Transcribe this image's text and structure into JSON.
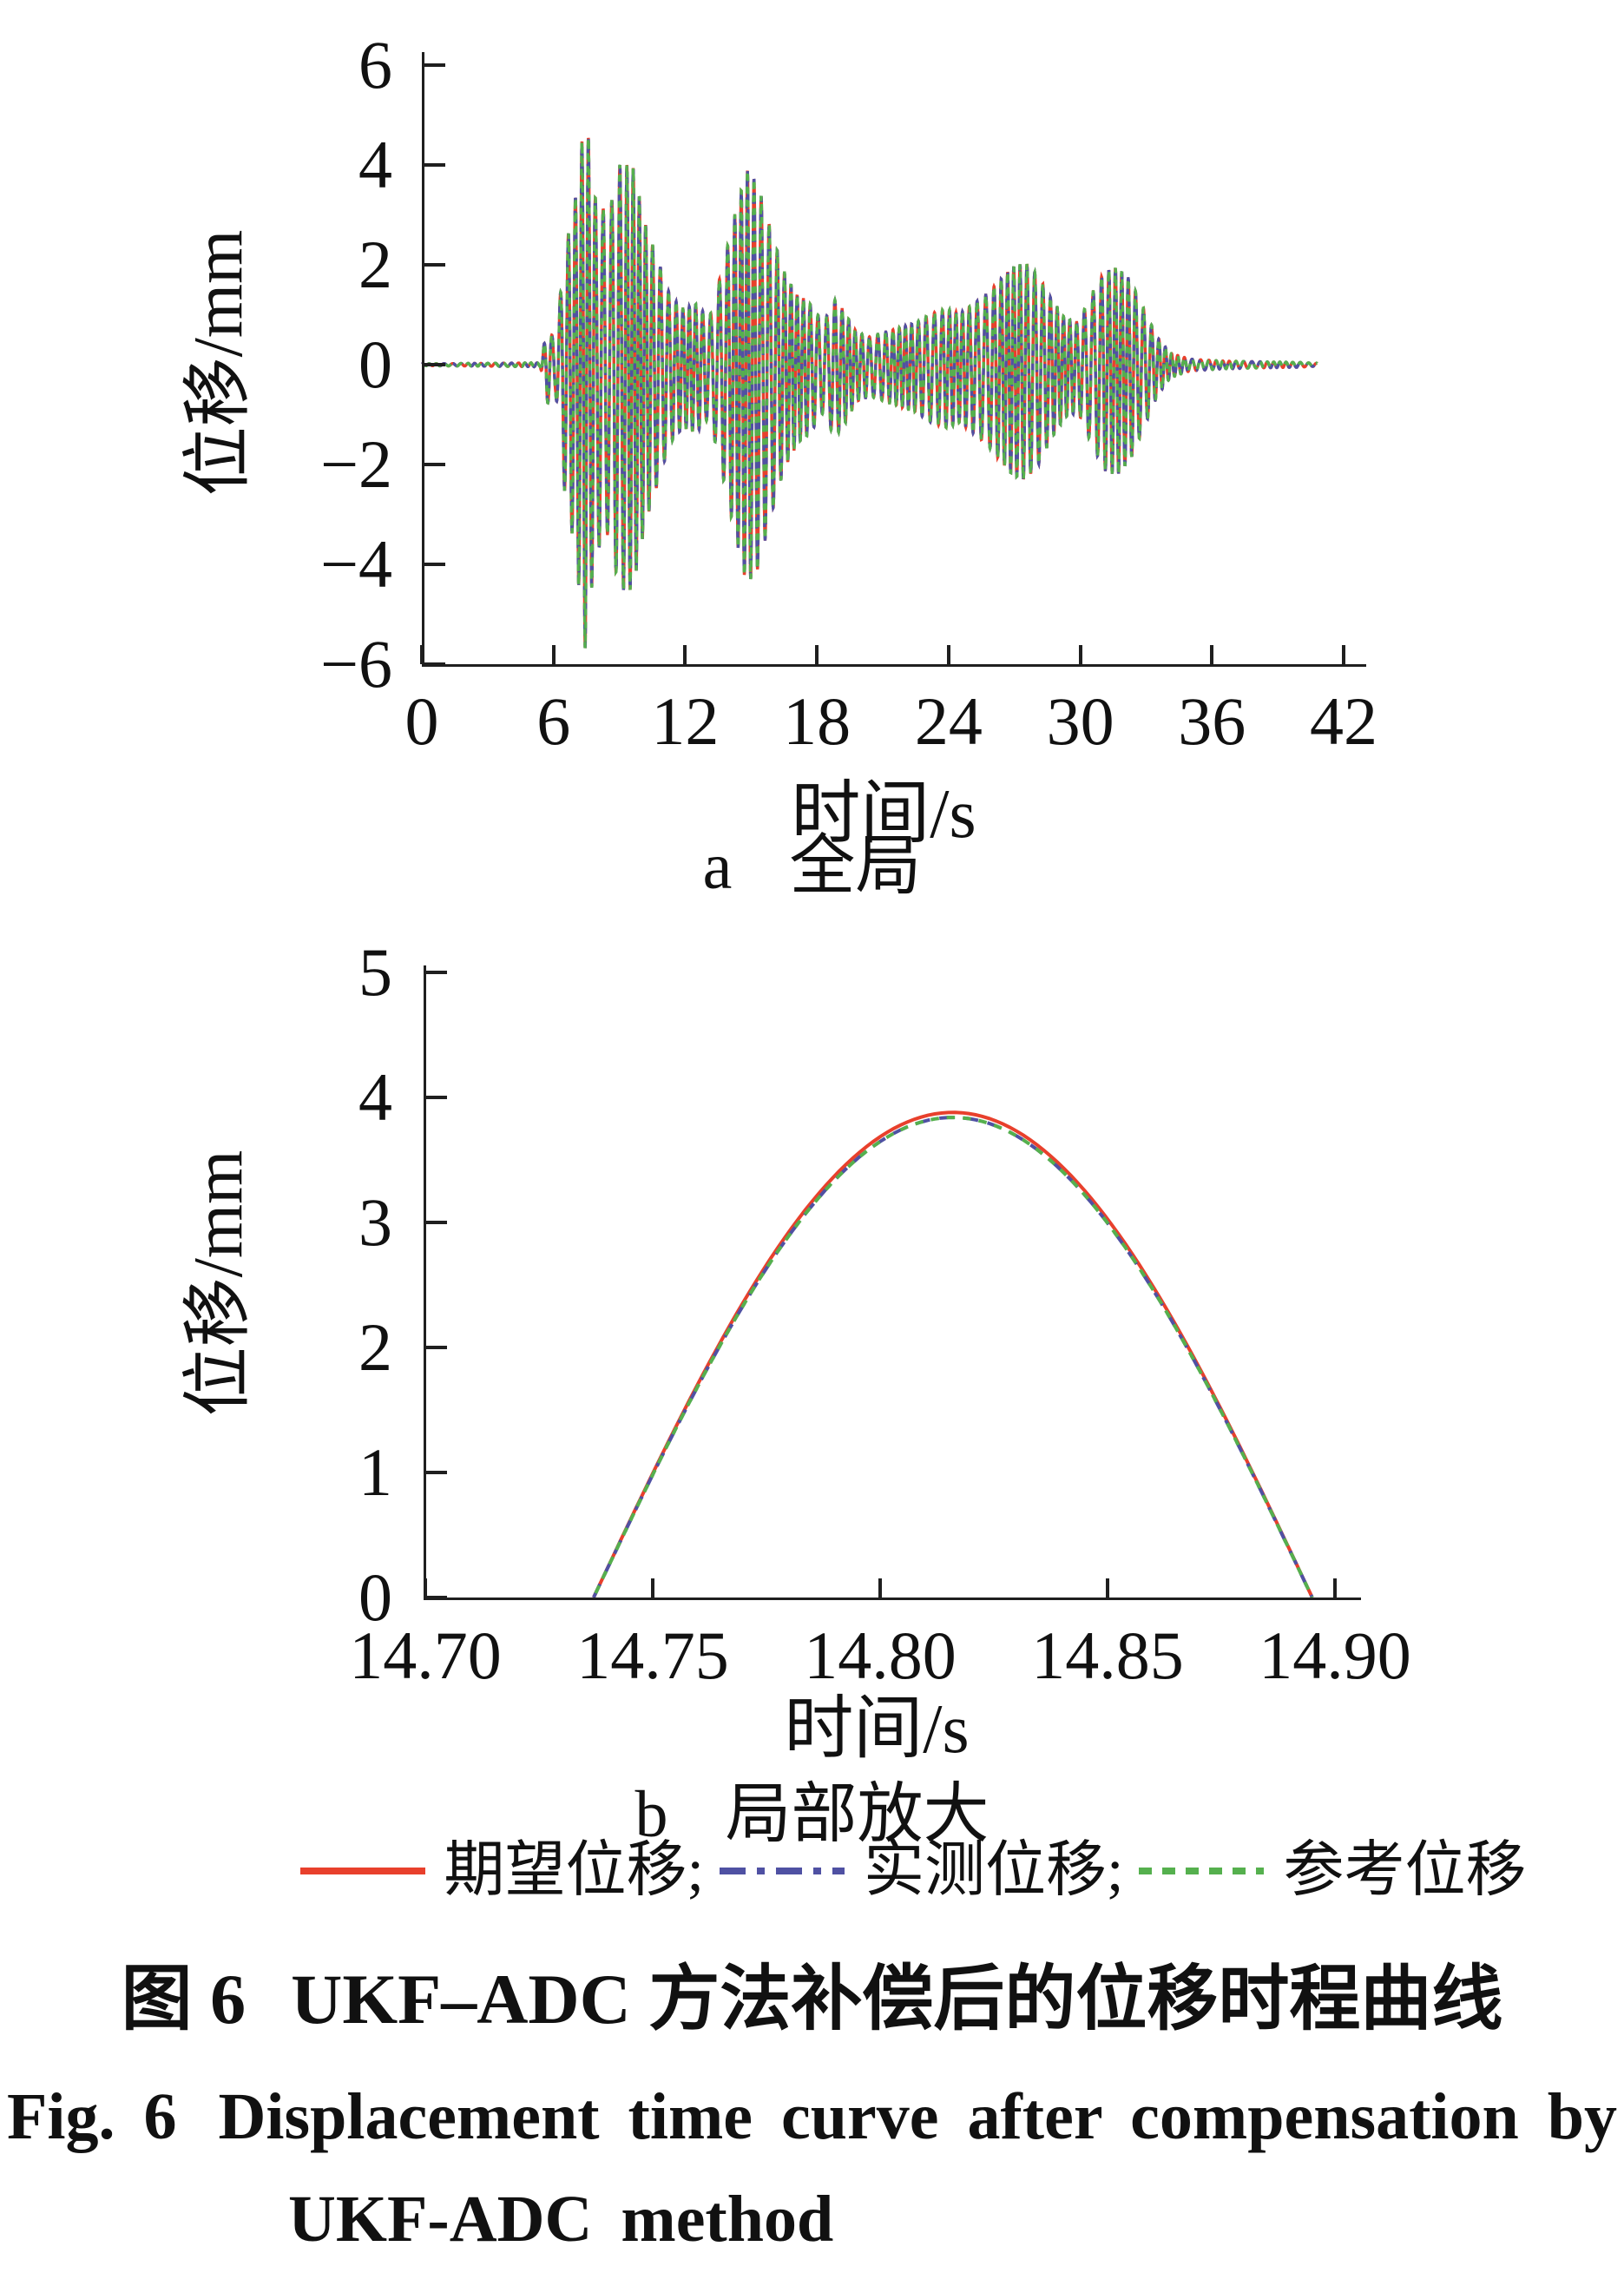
{
  "page": {
    "background": "#ffffff"
  },
  "subplot_a": {
    "panel_label": "a",
    "panel_title": "全局",
    "xlabel": "时间/s",
    "ylabel": "位移/mm",
    "xticks": [
      "0",
      "6",
      "12",
      "18",
      "24",
      "30",
      "36",
      "42"
    ],
    "yticks": [
      "6",
      "4",
      "2",
      "0",
      "−2",
      "−4",
      "−6"
    ],
    "xlim": [
      0,
      42
    ],
    "ylim": [
      -6,
      6
    ]
  },
  "subplot_b": {
    "panel_label": "b",
    "panel_title": "局部放大",
    "xlabel": "时间/s",
    "ylabel": "位移/mm",
    "xticks": [
      "14.70",
      "14.75",
      "14.80",
      "14.85",
      "14.90"
    ],
    "yticks": [
      "0",
      "1",
      "2",
      "3",
      "4",
      "5"
    ],
    "xlim": [
      14.7,
      14.9
    ],
    "ylim": [
      0,
      5
    ]
  },
  "legend": {
    "items": [
      {
        "label": "期望位移;",
        "color": "#e8402c",
        "dash": "solid"
      },
      {
        "label": "实测位移;",
        "color": "#4f51a3",
        "dash": "long-dash"
      },
      {
        "label": "参考位移",
        "color": "#55b04e",
        "dash": "short-dash"
      }
    ]
  },
  "captions": {
    "zh_tag": "图 6",
    "zh_text": "UKF–ADC 方法补偿后的位移时程曲线",
    "en_tag": "Fig.  6",
    "en_line1": "Displacement time curve after compensation by",
    "en_line2": "UKF-ADC method"
  },
  "chart_data": [
    {
      "type": "line",
      "title": "a 全局",
      "xlabel": "时间/s",
      "ylabel": "位移/mm",
      "xlim": [
        0,
        42
      ],
      "ylim": [
        -6,
        6
      ],
      "xticks": [
        0,
        6,
        12,
        18,
        24,
        30,
        36,
        42
      ],
      "yticks": [
        -6,
        -4,
        -2,
        0,
        2,
        4,
        6
      ],
      "grid": false,
      "legend_position": "below-figure",
      "series": [
        {
          "name": "期望位移",
          "color": "#e8402c",
          "style": "solid"
        },
        {
          "name": "实测位移",
          "color": "#4f51a3",
          "style": "dashed"
        },
        {
          "name": "参考位移",
          "color": "#55b04e",
          "style": "short-dashed"
        }
      ],
      "note": "Three displacement traces coincide almost exactly over the whole record",
      "signal": {
        "quiet_until_s": 5.5,
        "signal_end_s": 40.8,
        "peak_mm": 5.1,
        "peak_time_s": 7.4,
        "trough_mm": -5.7,
        "trough_time_s": 7.6,
        "oscillation_hz": 3.05,
        "amplitude_envelope": [
          [
            0,
            0.02
          ],
          [
            5.4,
            0.04
          ],
          [
            5.7,
            0.75
          ],
          [
            6.1,
            0.55
          ],
          [
            6.5,
            2.4
          ],
          [
            7.0,
            3.6
          ],
          [
            7.45,
            5.45
          ],
          [
            7.9,
            3.6
          ],
          [
            8.5,
            3.2
          ],
          [
            9.0,
            4.3
          ],
          [
            9.6,
            4.3
          ],
          [
            10.2,
            3.0
          ],
          [
            10.8,
            2.2
          ],
          [
            11.3,
            1.5
          ],
          [
            11.9,
            1.2
          ],
          [
            12.5,
            1.3
          ],
          [
            13.1,
            1.0
          ],
          [
            13.7,
            2.1
          ],
          [
            14.3,
            3.3
          ],
          [
            14.8,
            4.2
          ],
          [
            15.3,
            3.9
          ],
          [
            15.9,
            2.9
          ],
          [
            16.5,
            2.0
          ],
          [
            17.1,
            1.5
          ],
          [
            17.7,
            1.3
          ],
          [
            18.3,
            0.9
          ],
          [
            18.8,
            1.4
          ],
          [
            19.3,
            1.1
          ],
          [
            19.8,
            0.7
          ],
          [
            20.4,
            0.6
          ],
          [
            21.1,
            0.7
          ],
          [
            21.8,
            0.8
          ],
          [
            22.5,
            0.9
          ],
          [
            23.2,
            1.1
          ],
          [
            23.9,
            1.2
          ],
          [
            24.5,
            1.1
          ],
          [
            25.1,
            1.3
          ],
          [
            25.7,
            1.5
          ],
          [
            26.3,
            1.8
          ],
          [
            26.9,
            2.1
          ],
          [
            27.5,
            2.2
          ],
          [
            28.1,
            1.9
          ],
          [
            28.7,
            1.4
          ],
          [
            29.3,
            1.0
          ],
          [
            29.9,
            0.9
          ],
          [
            30.5,
            1.5
          ],
          [
            31.1,
            2.0
          ],
          [
            31.7,
            2.1
          ],
          [
            32.3,
            1.8
          ],
          [
            32.9,
            1.2
          ],
          [
            33.5,
            0.6
          ],
          [
            34.1,
            0.25
          ],
          [
            35.0,
            0.12
          ],
          [
            36.5,
            0.08
          ],
          [
            38.5,
            0.06
          ],
          [
            40.0,
            0.05
          ],
          [
            40.8,
            0.03
          ]
        ]
      }
    },
    {
      "type": "line",
      "title": "b 局部放大",
      "xlabel": "时间/s",
      "ylabel": "位移/mm",
      "xlim": [
        14.7,
        14.9
      ],
      "ylim": [
        0,
        5
      ],
      "xticks": [
        14.7,
        14.75,
        14.8,
        14.85,
        14.9
      ],
      "yticks": [
        0,
        1,
        2,
        3,
        4,
        5
      ],
      "grid": false,
      "series": [
        {
          "name": "期望位移",
          "color": "#e8402c",
          "style": "solid",
          "peak_mm": 3.88
        },
        {
          "name": "实测位移",
          "color": "#4f51a3",
          "style": "dashed",
          "peak_mm": 3.84
        },
        {
          "name": "参考位移",
          "color": "#55b04e",
          "style": "short-dashed",
          "peak_mm": 3.84
        }
      ],
      "pulse": {
        "rise_zero_s": 14.737,
        "peak_s": 14.816,
        "fall_zero_s": 14.895
      },
      "samples_expected": [
        [
          14.74,
          0.23
        ],
        [
          14.76,
          1.71
        ],
        [
          14.78,
          2.93
        ],
        [
          14.8,
          3.68
        ],
        [
          14.82,
          3.87
        ],
        [
          14.84,
          3.44
        ],
        [
          14.86,
          2.49
        ],
        [
          14.88,
          1.14
        ],
        [
          14.893,
          0.06
        ]
      ]
    }
  ]
}
